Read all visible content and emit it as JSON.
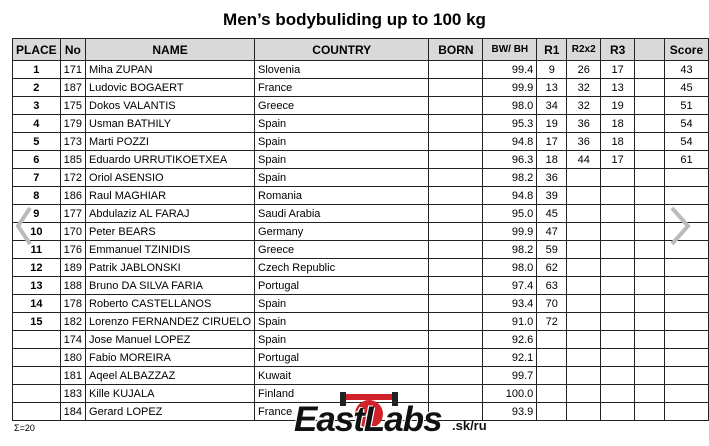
{
  "title": "Men’s bodybuliding up to 100 kg",
  "table": {
    "headers": [
      "PLACE",
      "No",
      "NAME",
      "COUNTRY",
      "BORN",
      "BW/ BH",
      "R1",
      "R2x2",
      "R3",
      "Score"
    ],
    "rows": [
      [
        "1",
        "171",
        "Miha ZUPAN",
        "Slovenia",
        null,
        "99.4",
        "9",
        "26",
        "17",
        "43"
      ],
      [
        "2",
        "187",
        "Ludovic BOGAERT",
        "France",
        null,
        "99.9",
        "13",
        "32",
        "13",
        "45"
      ],
      [
        "3",
        "175",
        "Dokos VALANTIS",
        "Greece",
        null,
        "98.0",
        "34",
        "32",
        "19",
        "51"
      ],
      [
        "4",
        "179",
        "Usman BATHILY",
        "Spain",
        null,
        "95.3",
        "19",
        "36",
        "18",
        "54"
      ],
      [
        "5",
        "173",
        "Marti POZZI",
        "Spain",
        null,
        "94.8",
        "17",
        "36",
        "18",
        "54"
      ],
      [
        "6",
        "185",
        "Eduardo URRUTIKOETXEA",
        "Spain",
        null,
        "96.3",
        "18",
        "44",
        "17",
        "61"
      ],
      [
        "7",
        "172",
        "Oriol ASENSIO",
        "Spain",
        null,
        "98.2",
        "36",
        null,
        null,
        null
      ],
      [
        "8",
        "186",
        "Raul MAGHIAR",
        "Romania",
        null,
        "94.8",
        "39",
        null,
        null,
        null
      ],
      [
        "9",
        "177",
        "Abdulaziz AL FARAJ",
        "Saudi Arabia",
        null,
        "95.0",
        "45",
        null,
        null,
        null
      ],
      [
        "10",
        "170",
        "Peter BEARS",
        "Germany",
        null,
        "99.9",
        "47",
        null,
        null,
        null
      ],
      [
        "11",
        "176",
        "Emmanuel TZINIDIS",
        "Greece",
        null,
        "98.2",
        "59",
        null,
        null,
        null
      ],
      [
        "12",
        "189",
        "Patrik JABLONSKI",
        "Czech Republic",
        null,
        "98.0",
        "62",
        null,
        null,
        null
      ],
      [
        "13",
        "188",
        "Bruno DA SILVA FARIA",
        "Portugal",
        null,
        "97.4",
        "63",
        null,
        null,
        null
      ],
      [
        "14",
        "178",
        "Roberto CASTELLANOS",
        "Spain",
        null,
        "93.4",
        "70",
        null,
        null,
        null
      ],
      [
        "15",
        "182",
        "Lorenzo FERNANDEZ CIRUELO",
        "Spain",
        null,
        "91.0",
        "72",
        null,
        null,
        null
      ],
      [
        null,
        "174",
        "Jose Manuel LOPEZ",
        "Spain",
        null,
        "92.6",
        null,
        null,
        null,
        null
      ],
      [
        null,
        "180",
        "Fabio MOREIRA",
        "Portugal",
        null,
        "92.1",
        null,
        null,
        null,
        null
      ],
      [
        null,
        "181",
        "Aqeel ALBAZZAZ",
        "Kuwait",
        null,
        "99.7",
        null,
        null,
        null,
        null
      ],
      [
        null,
        "183",
        "Kille KUJALA",
        "Finland",
        null,
        "100.0",
        null,
        null,
        null,
        null
      ],
      [
        null,
        "184",
        "Gerard LOPEZ",
        "France",
        null,
        "93.9",
        null,
        null,
        null,
        null
      ]
    ]
  },
  "footer": "Σ=20",
  "watermark": {
    "brand": "EastLabs",
    "domain": ".sk/ru"
  }
}
